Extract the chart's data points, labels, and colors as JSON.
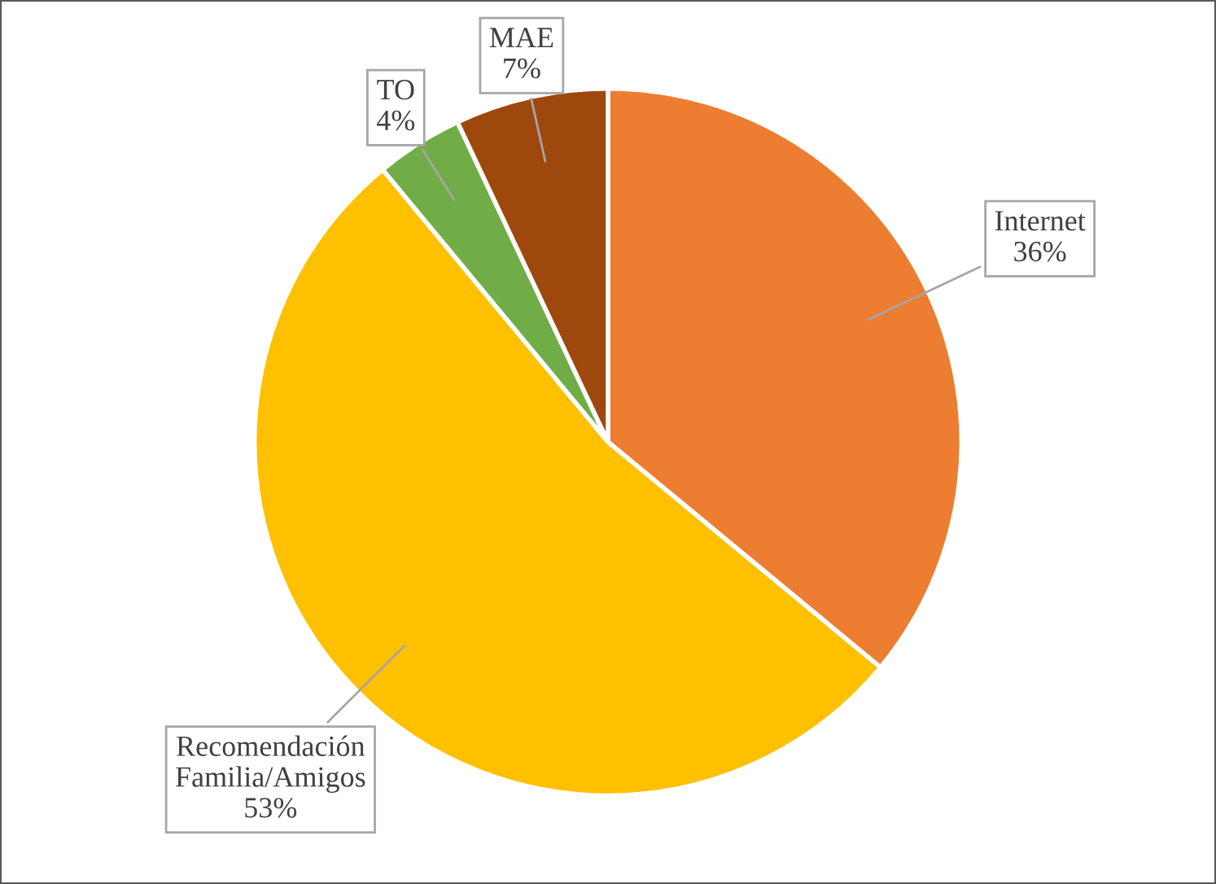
{
  "chart_data": {
    "type": "pie",
    "categories": [
      "Internet",
      "Recomendación Familia/Amigos",
      "TO",
      "MAE"
    ],
    "values": [
      36,
      53,
      4,
      7
    ],
    "colors": [
      "#ed7d31",
      "#ffc000",
      "#70ad47",
      "#9e480e"
    ],
    "value_labels": [
      "36%",
      "53%",
      "4%",
      "7%"
    ],
    "legend": false
  }
}
